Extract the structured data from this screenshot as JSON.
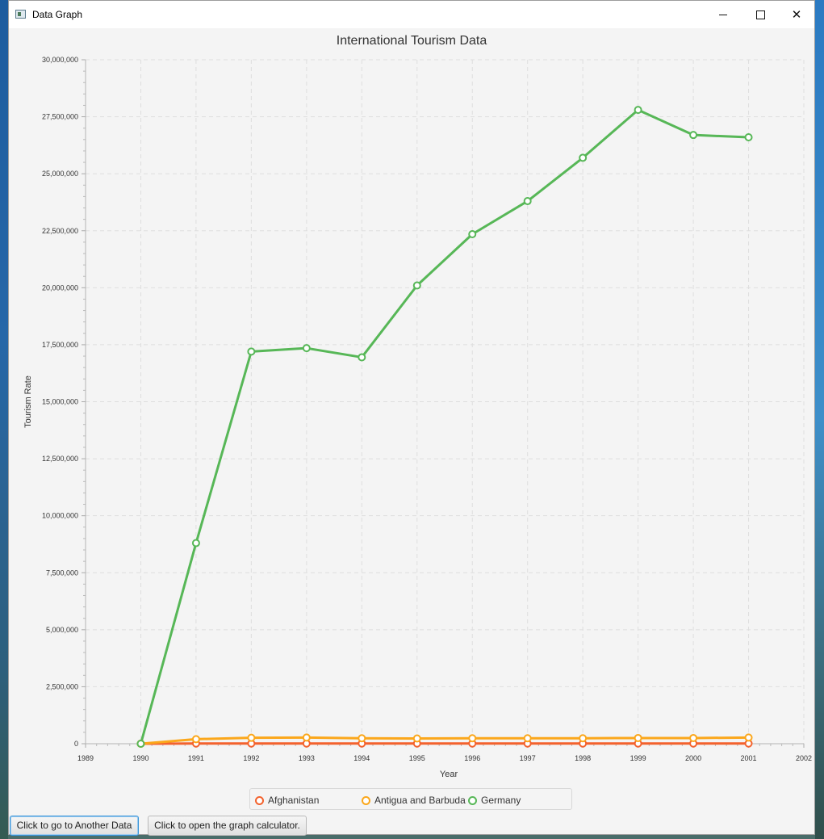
{
  "window": {
    "title": "Data Graph",
    "controls": {
      "minimize": "minimize-icon",
      "maximize": "maximize-icon",
      "close": "close-icon"
    }
  },
  "chart_data": {
    "type": "line",
    "title": "International Tourism Data",
    "xlabel": "Year",
    "ylabel": "Tourism Rate",
    "xlim": [
      1989,
      2002
    ],
    "ylim": [
      0,
      30000000
    ],
    "x_ticks": [
      "1989",
      "1990",
      "1991",
      "1992",
      "1993",
      "1994",
      "1995",
      "1996",
      "1997",
      "1998",
      "1999",
      "2000",
      "2001",
      "2002"
    ],
    "y_ticks": [
      "0",
      "2,500,000",
      "5,000,000",
      "7,500,000",
      "10,000,000",
      "12,500,000",
      "15,000,000",
      "17,500,000",
      "20,000,000",
      "22,500,000",
      "25,000,000",
      "27,500,000",
      "30,000,000"
    ],
    "x": [
      1990,
      1991,
      1992,
      1993,
      1994,
      1995,
      1996,
      1997,
      1998,
      1999,
      2000,
      2001
    ],
    "grid": true,
    "legend_position": "bottom",
    "series": [
      {
        "name": "Afghanistan",
        "color": "#f3622d",
        "values": [
          0,
          8000,
          8000,
          8000,
          8000,
          8000,
          8000,
          8000,
          8000,
          8000,
          8000,
          8000
        ]
      },
      {
        "name": "Antigua and Barbuda",
        "color": "#fba71b",
        "values": [
          0,
          200000,
          260000,
          270000,
          240000,
          230000,
          240000,
          240000,
          240000,
          250000,
          250000,
          270000
        ]
      },
      {
        "name": "Germany",
        "color": "#57b757",
        "values": [
          0,
          8800000,
          17200000,
          17350000,
          16950000,
          20100000,
          22350000,
          23800000,
          25700000,
          27800000,
          26700000,
          26600000
        ]
      }
    ]
  },
  "buttons": {
    "another_data": "Click to go to Another Data",
    "graph_calculator": "Click to open the graph calculator."
  }
}
